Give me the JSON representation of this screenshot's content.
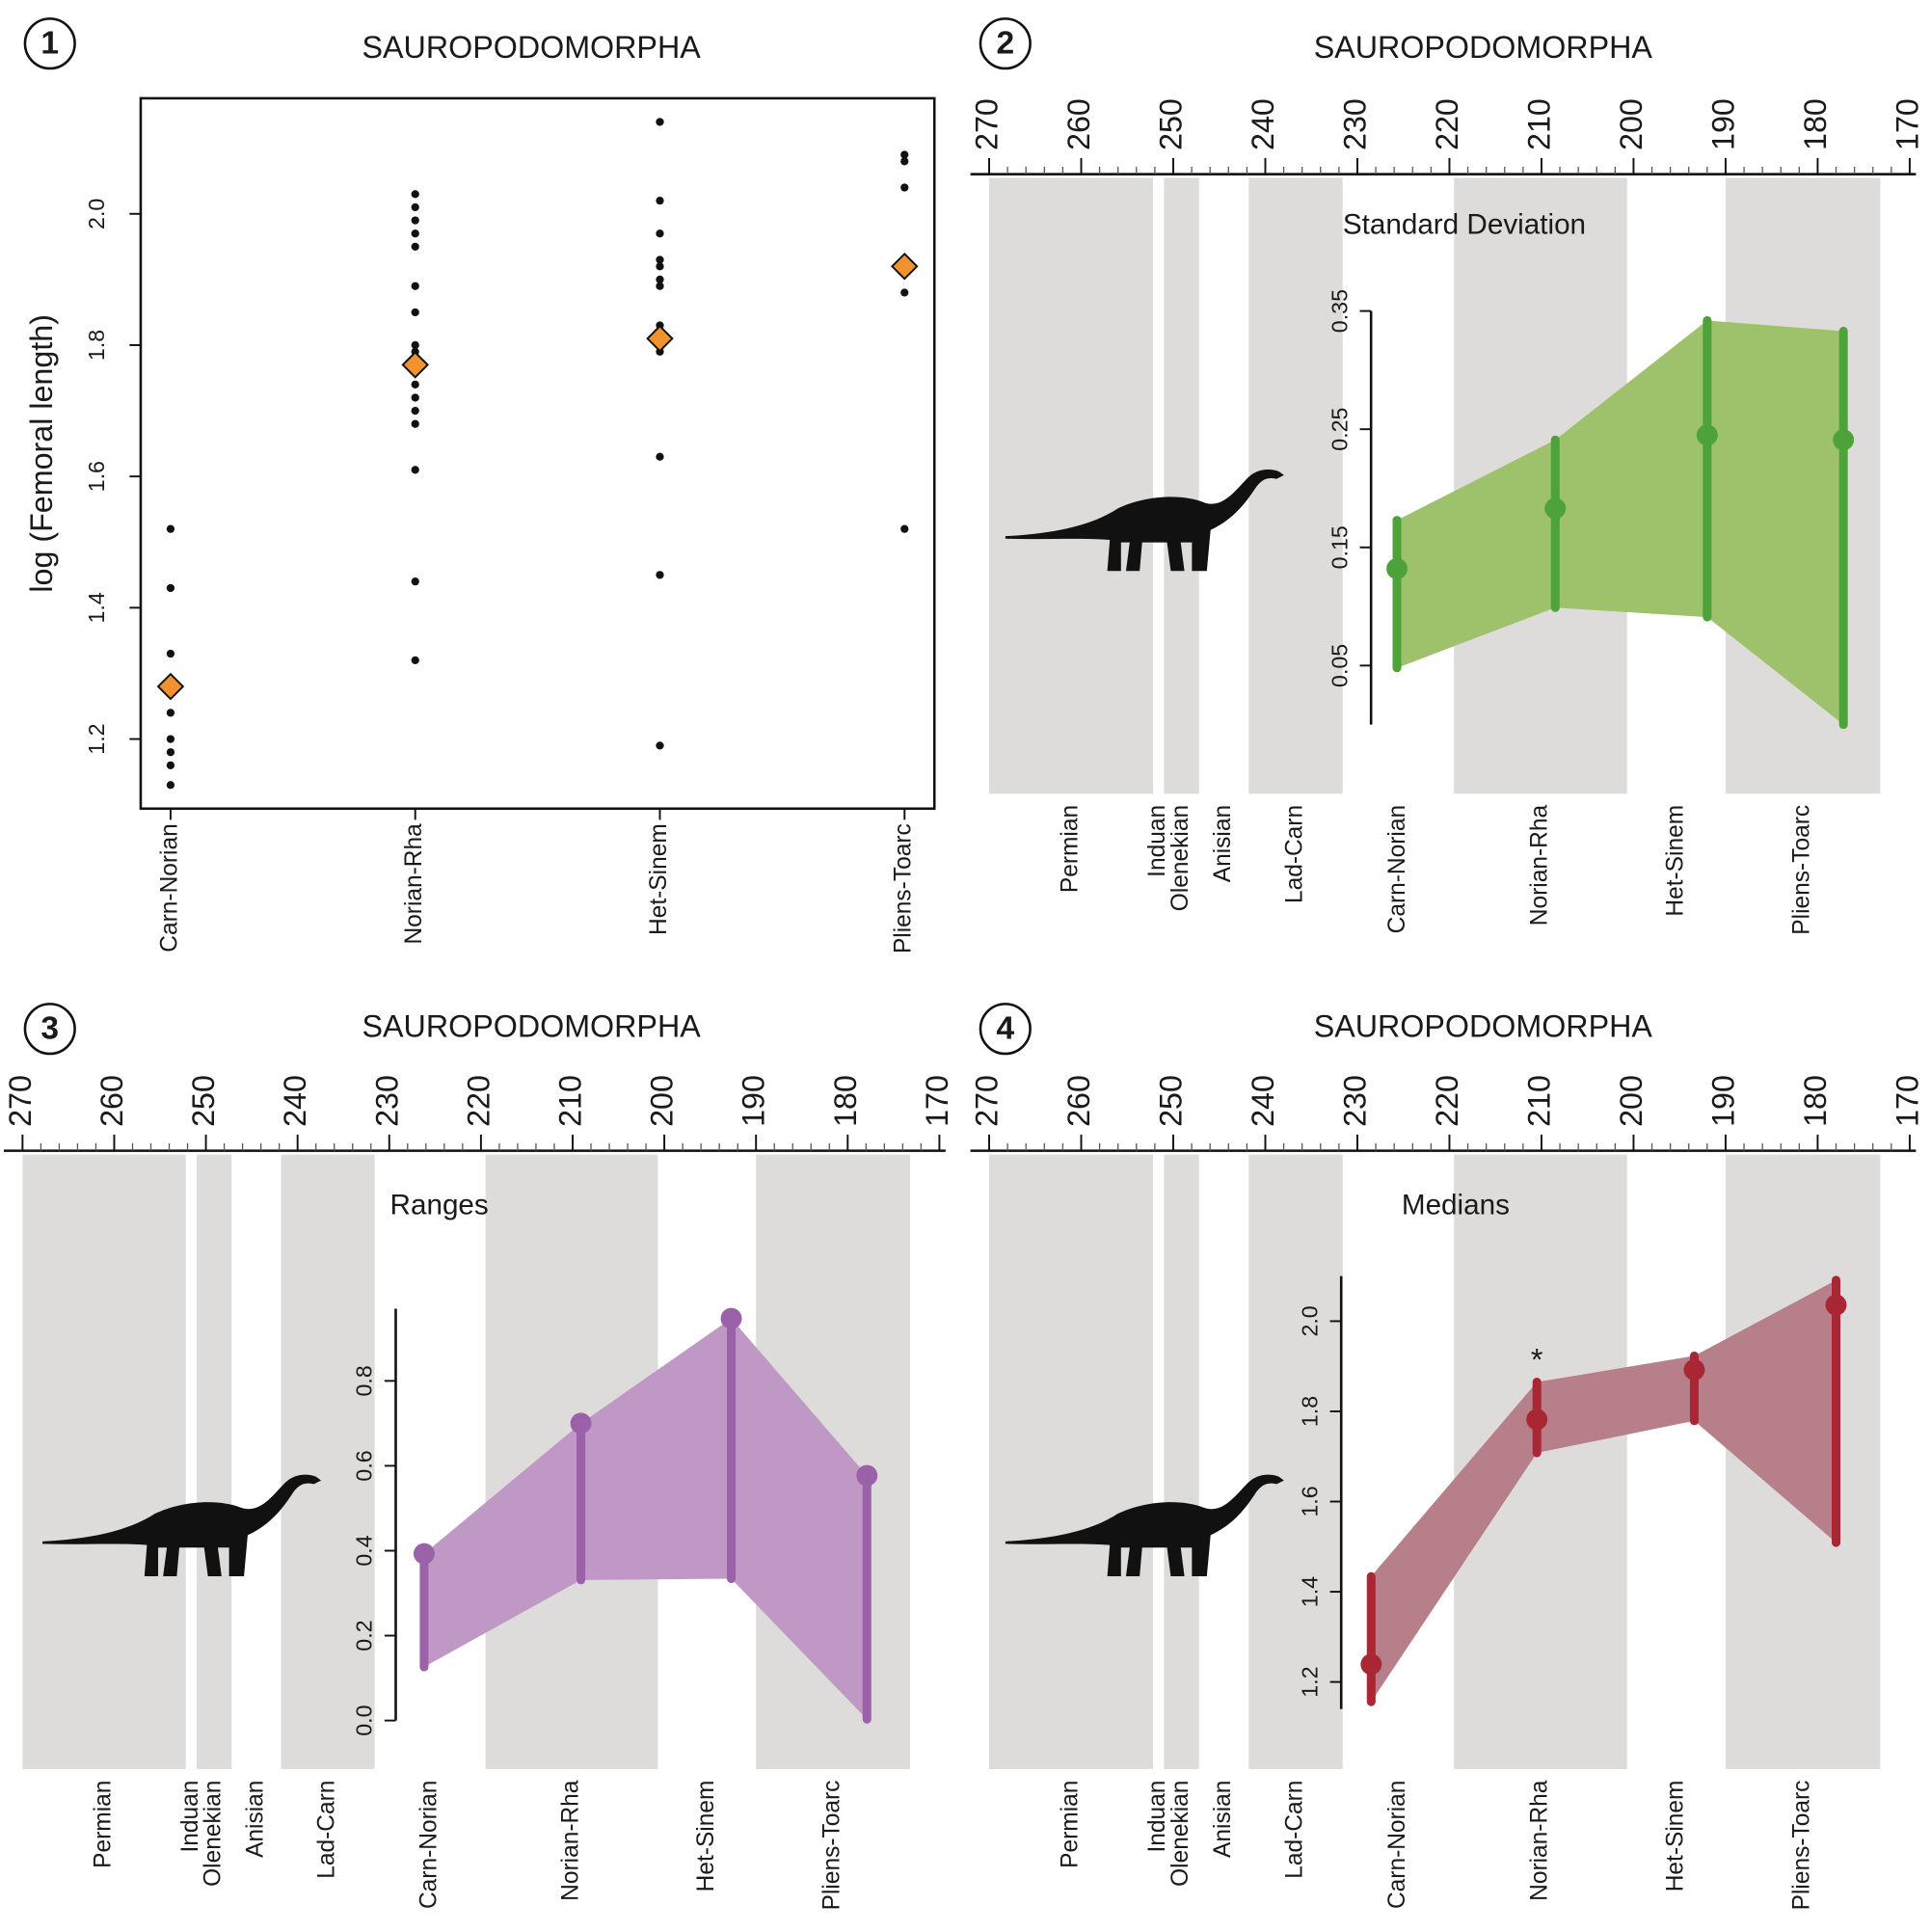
{
  "chart_data": [
    {
      "type": "strip",
      "panel": "1",
      "title": "SAUROPODOMORPHA",
      "y_label": "log (Femoral length)",
      "categories": [
        "Carn-Norian",
        "Norian-Rha",
        "Het-Sinem",
        "Pliens-Toarc"
      ],
      "points": [
        [
          1.52,
          1.43,
          1.33,
          1.24,
          1.2,
          1.18,
          1.16,
          1.13
        ],
        [
          2.03,
          2.01,
          1.99,
          1.97,
          1.95,
          1.89,
          1.85,
          1.8,
          1.79,
          1.74,
          1.72,
          1.7,
          1.68,
          1.61,
          1.44,
          1.32
        ],
        [
          2.14,
          2.02,
          1.97,
          1.93,
          1.92,
          1.9,
          1.89,
          1.83,
          1.82,
          1.79,
          1.63,
          1.45,
          1.19
        ],
        [
          2.09,
          2.08,
          2.04,
          1.88,
          1.52
        ]
      ],
      "means": [
        1.28,
        1.77,
        1.81,
        1.92
      ],
      "point_color": "#111111",
      "mean_color": "#f0922e",
      "ylim": [
        1.094,
        2.176
      ],
      "yticks": [
        1.2,
        1.4,
        1.6,
        1.8,
        {
          "value": 2,
          "label": "2.0"
        }
      ]
    },
    {
      "type": "range",
      "panel": "2",
      "title": "SAUROPODOMORPHA",
      "label": "Standard Deviation",
      "xlim": [
        270,
        170
      ],
      "xticks": [
        270,
        260,
        250,
        240,
        230,
        220,
        210,
        200,
        190,
        180,
        170
      ],
      "band_color": "#dedcda",
      "stages": [
        {
          "name": "Permian",
          "start": 270,
          "end": 252.2,
          "shaded": true
        },
        {
          "name": "Induan",
          "start": 252.2,
          "end": 251,
          "shaded": false
        },
        {
          "name": "Olenekian",
          "start": 251,
          "end": 247.2,
          "shaded": true
        },
        {
          "name": "Anisian",
          "start": 247.2,
          "end": 241.8,
          "shaded": false
        },
        {
          "name": "Lad-Carn",
          "start": 241.8,
          "end": 231.6,
          "shaded": true
        },
        {
          "name": "Carn-Norian",
          "start": 231.6,
          "end": 219.5,
          "shaded": false
        },
        {
          "name": "Norian-Rha",
          "start": 219.5,
          "end": 200.7,
          "shaded": true
        },
        {
          "name": "Het-Sinem",
          "start": 200.7,
          "end": 190,
          "shaded": false
        },
        {
          "name": "Pliens-Toarc",
          "start": 190,
          "end": 173.2,
          "shaded": true
        }
      ],
      "series": [
        {
          "color": "#4ea23a",
          "fill": "#9dc26b",
          "x": [
            225.7,
            208.5,
            192,
            177.2
          ],
          "values": [
            0.132,
            0.183,
            0.245,
            0.241
          ],
          "lower": [
            0.048,
            0.099,
            0.091,
            0.0
          ],
          "upper": [
            0.173,
            0.241,
            0.342,
            0.333
          ]
        }
      ],
      "ylim": [
        0,
        0.35
      ],
      "yticks": [
        0.05,
        0.15,
        0.25,
        0.35
      ]
    },
    {
      "type": "range",
      "panel": "3",
      "title": "SAUROPODOMORPHA",
      "label": "Ranges",
      "xlim": [
        270,
        170
      ],
      "xticks": [
        270,
        260,
        250,
        240,
        230,
        220,
        210,
        200,
        190,
        180,
        170
      ],
      "band_color": "#dedcda",
      "stages": [
        {
          "name": "Permian",
          "start": 270,
          "end": 252.2,
          "shaded": true
        },
        {
          "name": "Induan",
          "start": 252.2,
          "end": 251,
          "shaded": false
        },
        {
          "name": "Olenekian",
          "start": 251,
          "end": 247.2,
          "shaded": true
        },
        {
          "name": "Anisian",
          "start": 247.2,
          "end": 241.8,
          "shaded": false
        },
        {
          "name": "Lad-Carn",
          "start": 241.8,
          "end": 231.6,
          "shaded": true
        },
        {
          "name": "Carn-Norian",
          "start": 231.6,
          "end": 219.5,
          "shaded": false
        },
        {
          "name": "Norian-Rha",
          "start": 219.5,
          "end": 200.7,
          "shaded": true
        },
        {
          "name": "Het-Sinem",
          "start": 200.7,
          "end": 190,
          "shaded": false
        },
        {
          "name": "Pliens-Toarc",
          "start": 190,
          "end": 173.2,
          "shaded": true
        }
      ],
      "series": [
        {
          "color": "#9b62aa",
          "fill": "#bf98c5",
          "x": [
            226.2,
            209.1,
            192.7,
            177.9
          ],
          "values": [
            0.393,
            0.7,
            0.947,
            0.577
          ],
          "lower": [
            0.126,
            0.331,
            0.334,
            0.003
          ]
        }
      ],
      "ylim": [
        0,
        0.97
      ],
      "yticks": [
        {
          "value": 0,
          "label": "0.0"
        },
        0.2,
        0.4,
        0.6,
        0.8
      ]
    },
    {
      "type": "range",
      "panel": "4",
      "title": "SAUROPODOMORPHA",
      "label": "Medians",
      "xlim": [
        270,
        170
      ],
      "xticks": [
        270,
        260,
        250,
        240,
        230,
        220,
        210,
        200,
        190,
        180,
        170
      ],
      "band_color": "#dedcda",
      "stages": [
        {
          "name": "Permian",
          "start": 270,
          "end": 252.2,
          "shaded": true
        },
        {
          "name": "Induan",
          "start": 252.2,
          "end": 251,
          "shaded": false
        },
        {
          "name": "Olenekian",
          "start": 251,
          "end": 247.2,
          "shaded": true
        },
        {
          "name": "Anisian",
          "start": 247.2,
          "end": 241.8,
          "shaded": false
        },
        {
          "name": "Lad-Carn",
          "start": 241.8,
          "end": 231.6,
          "shaded": true
        },
        {
          "name": "Carn-Norian",
          "start": 231.6,
          "end": 219.5,
          "shaded": false
        },
        {
          "name": "Norian-Rha",
          "start": 219.5,
          "end": 200.7,
          "shaded": true
        },
        {
          "name": "Het-Sinem",
          "start": 200.7,
          "end": 190,
          "shaded": false
        },
        {
          "name": "Pliens-Toarc",
          "start": 190,
          "end": 173.2,
          "shaded": true
        }
      ],
      "series": [
        {
          "color": "#a92735",
          "fill": "#b67f8a",
          "x": [
            228.5,
            210.5,
            193.4,
            178
          ],
          "values": [
            1.239,
            1.782,
            1.892,
            2.036
          ],
          "lower": [
            1.156,
            1.708,
            1.779,
            1.509
          ],
          "upper": [
            1.434,
            1.865,
            1.923,
            2.091
          ]
        }
      ],
      "annotations": [
        {
          "text": "*",
          "x": 210.5
        }
      ],
      "ylim": [
        1.14,
        2.1
      ],
      "yticks": [
        1.2,
        1.4,
        1.6,
        1.8,
        {
          "value": 2,
          "label": "2.0"
        }
      ]
    }
  ]
}
